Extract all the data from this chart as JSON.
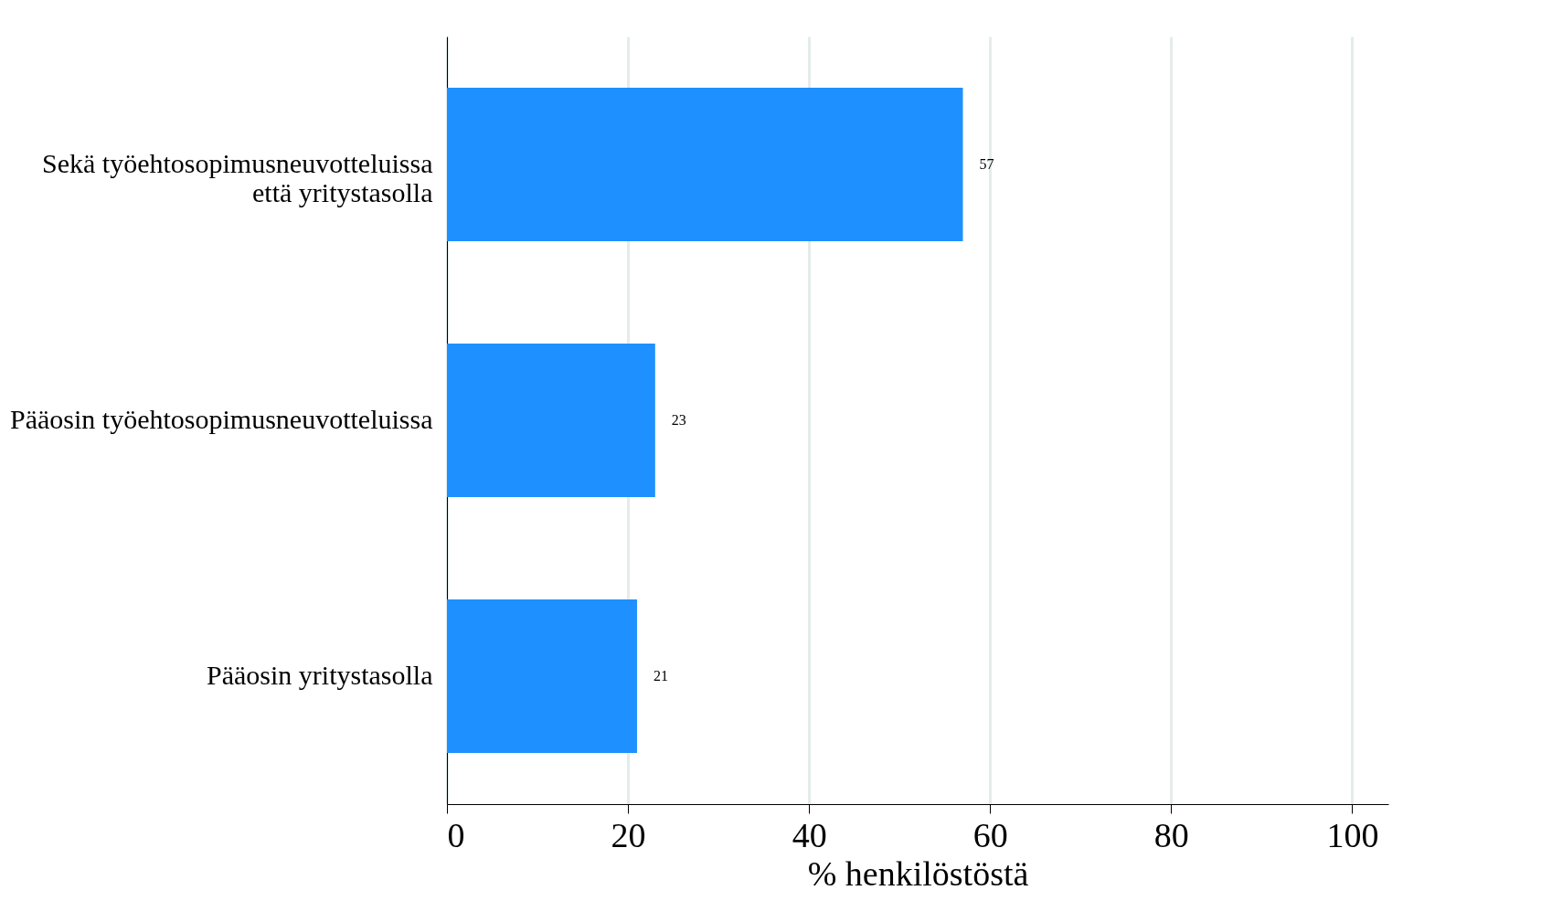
{
  "chart_data": {
    "type": "bar",
    "orientation": "horizontal",
    "xlabel": "% henkilöstöstä",
    "categories": [
      "Sekä työehtosopimusneuvotteluissa että yritystasolla",
      "Pääosin työehtosopimusneuvotteluissa",
      "Pääosin yritystasolla"
    ],
    "values": [
      57,
      23,
      21
    ],
    "color": "#1e90ff",
    "data_labels": true,
    "xlim": [
      0,
      104
    ],
    "xticks": [
      0,
      20,
      40,
      60,
      80,
      100
    ],
    "grid": "x"
  }
}
